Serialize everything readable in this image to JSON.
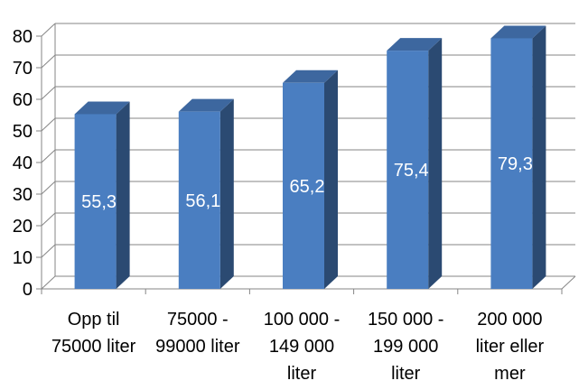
{
  "chart_data": {
    "type": "bar",
    "title": "",
    "xlabel": "",
    "ylabel": "",
    "ylim": [
      0,
      80
    ],
    "yticks": [
      0,
      10,
      20,
      30,
      40,
      50,
      60,
      70,
      80
    ],
    "grid": true,
    "three_d": true,
    "categories": [
      [
        "Opp til",
        "75000 liter"
      ],
      [
        "75000 -",
        "99000 liter"
      ],
      [
        "100 000 -",
        "149 000",
        "liter"
      ],
      [
        "150 000 -",
        "199 000",
        "liter"
      ],
      [
        "200 000",
        "liter eller",
        "mer"
      ]
    ],
    "values": [
      55.3,
      56.1,
      65.2,
      75.4,
      79.3
    ],
    "data_labels": [
      "55,3",
      "56,1",
      "65,2",
      "75,4",
      "79,3"
    ],
    "colors": {
      "bar_front": "#4a7ec1",
      "bar_side": "#2b4a72",
      "bar_top": "#3d679f",
      "grid": "#868686",
      "axis": "#868686",
      "label": "#ffffff"
    }
  }
}
